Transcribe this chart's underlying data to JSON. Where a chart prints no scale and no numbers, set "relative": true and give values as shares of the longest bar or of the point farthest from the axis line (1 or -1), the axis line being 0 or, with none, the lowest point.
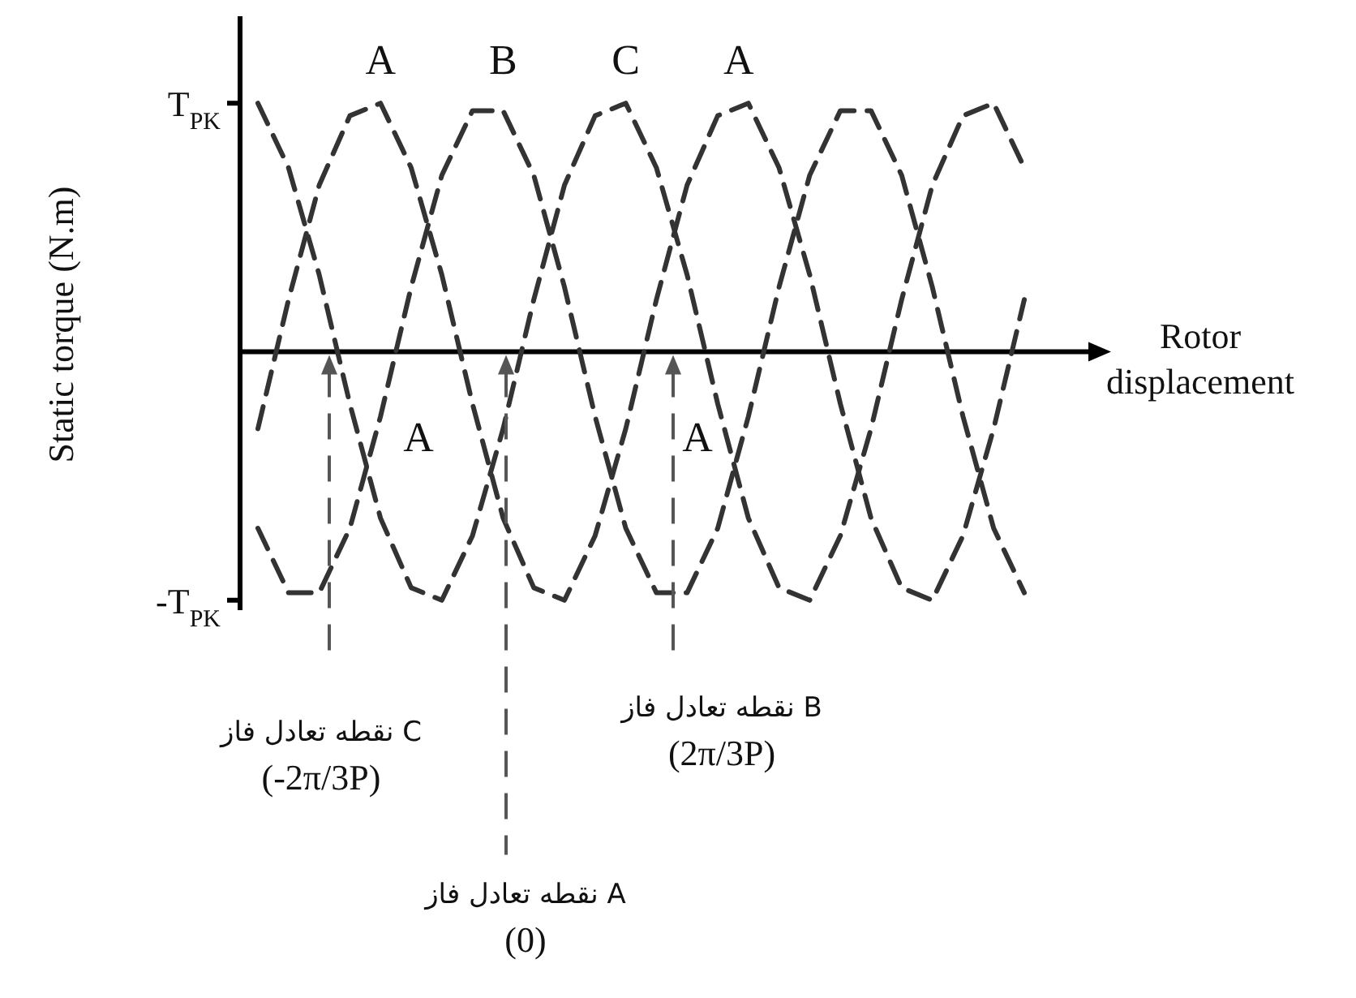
{
  "chart_data": {
    "type": "line",
    "xlabel": "Rotor displacement",
    "ylabel": "Static torque (N.m)",
    "line_style": "dashed",
    "marker": "none",
    "legend": false,
    "grid": false,
    "relative": true,
    "categories": [
      null,
      null,
      null,
      null,
      null,
      null,
      null,
      null,
      null,
      null,
      null,
      null,
      null,
      null,
      null,
      null,
      null,
      null,
      null,
      null,
      null,
      null,
      null,
      null,
      null,
      null
    ],
    "series": [
      {
        "name": "A",
        "color": "#333333",
        "values": [
          -0.31,
          0.21,
          0.67,
          0.95,
          1,
          0.74,
          0.31,
          -0.21,
          -0.67,
          -0.95,
          -1,
          -0.74,
          -0.31,
          0.21,
          0.67,
          0.95,
          1,
          0.74,
          0.31,
          -0.21,
          -0.67,
          -0.95,
          -1,
          -0.74,
          -0.31,
          0.21
        ]
      },
      {
        "name": "B",
        "color": "#333333",
        "values": [
          -0.71,
          -0.97,
          -0.97,
          -0.71,
          -0.26,
          0.26,
          0.71,
          0.97,
          0.97,
          0.71,
          0.26,
          -0.26,
          -0.71,
          -0.97,
          -0.97,
          -0.71,
          -0.26,
          0.26,
          0.71,
          0.97,
          0.97,
          0.71,
          0.26,
          -0.26,
          -0.71,
          -0.97
        ]
      },
      {
        "name": "C",
        "color": "#333333",
        "values": [
          1,
          0.74,
          0.31,
          -0.21,
          -0.67,
          -0.95,
          -1,
          -0.74,
          -0.31,
          0.21,
          0.67,
          0.95,
          1,
          0.74,
          0.31,
          -0.21,
          -0.67,
          -0.95,
          -1,
          -0.74,
          -0.31,
          0.21,
          0.67,
          0.95,
          1,
          0.74
        ]
      }
    ],
    "annotations": [
      "A",
      "A",
      "A",
      "T$_{PK}$",
      "-T$_{PK}$",
      "نقطه تعادل فاز C\n(-2π/3P)",
      "نقطه تعادل فاز A\n(0)",
      "نقطه تعادل فاز B\n(2π/3P)"
    ]
  }
}
